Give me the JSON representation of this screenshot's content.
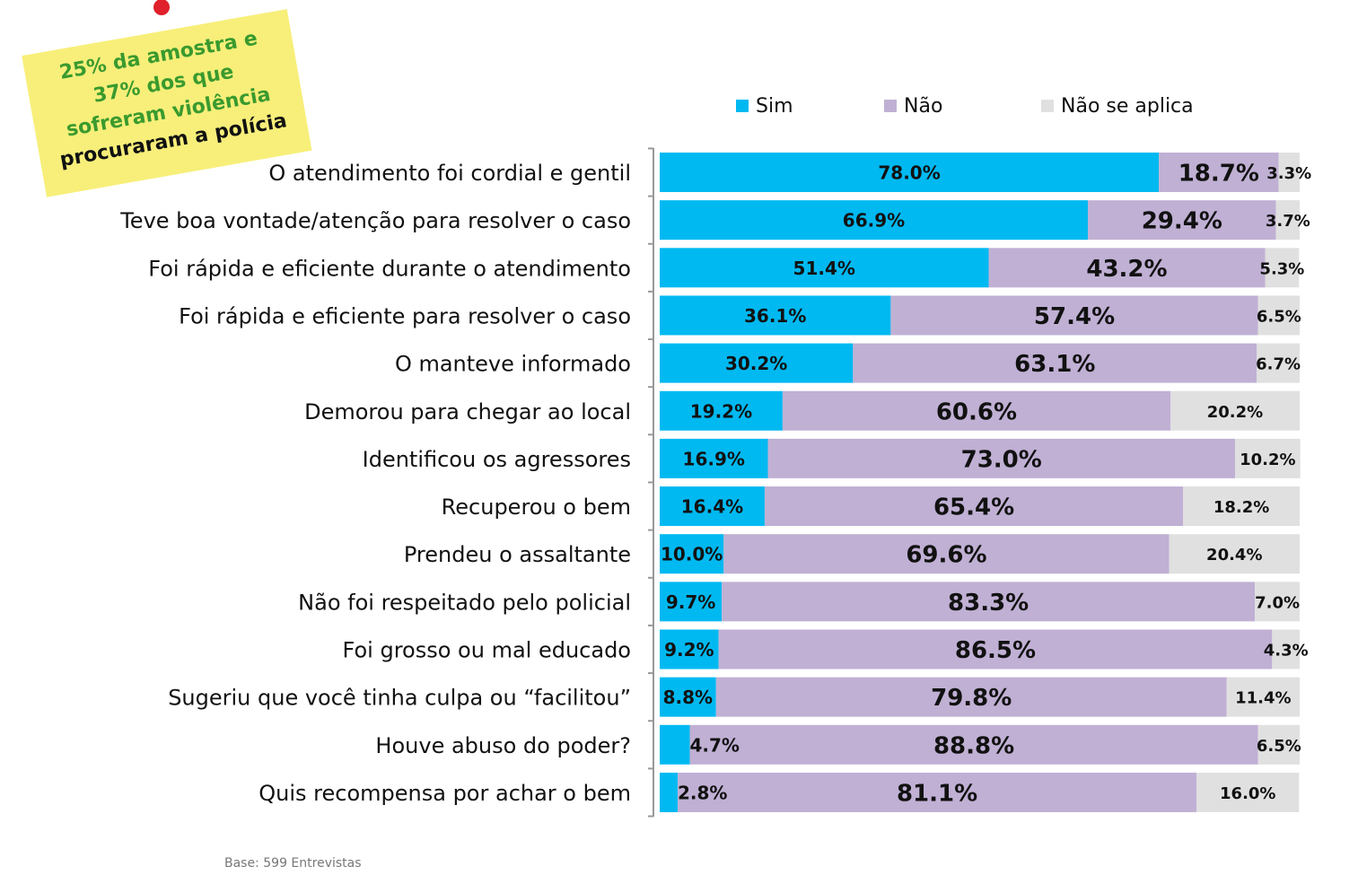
{
  "chart_data": {
    "type": "stacked-bar-horizontal",
    "annotation": [
      "25% da amostra e",
      "37% dos que",
      "sofreram violência",
      "procuraram a polícia"
    ],
    "footnote": "Base: 599 Entrevistas",
    "categories": [
      "O atendimento foi cordial e gentil",
      "Teve boa vontade/atenção para resolver o caso",
      "Foi rápida e eficiente durante o atendimento",
      "Foi rápida e eficiente para resolver o caso",
      "O manteve informado",
      "Demorou para chegar ao local",
      "Identificou os agressores",
      "Recuperou o bem",
      "Prendeu o assaltante",
      "Não foi respeitado pelo policial",
      "Foi grosso ou mal educado",
      "Sugeriu que você tinha culpa ou “facilitou”",
      "Houve abuso do poder?",
      "Quis recompensa por achar o bem"
    ],
    "xlim": [
      0,
      100
    ],
    "series": [
      {
        "name": "Sim",
        "color": "#00b9f1",
        "values": [
          78.0,
          66.9,
          51.4,
          36.1,
          30.2,
          19.2,
          16.9,
          16.4,
          10.0,
          9.7,
          9.2,
          8.8,
          4.7,
          2.8
        ],
        "value_labels": [
          "78.0%",
          "66.9%",
          "51.4%",
          "36.1%",
          "30.2%",
          "19.2%",
          "16.9%",
          "16.4%",
          "10.0%",
          "9.7%",
          "9.2%",
          "8.8%",
          "4.7%",
          "2.8%"
        ]
      },
      {
        "name": "Não",
        "color": "#c0b0d4",
        "values": [
          18.7,
          29.4,
          43.2,
          57.4,
          63.1,
          60.6,
          73.0,
          65.4,
          69.6,
          83.3,
          86.5,
          79.8,
          88.8,
          81.1
        ],
        "value_labels": [
          "18.7%",
          "29.4%",
          "43.2%",
          "57.4%",
          "63.1%",
          "60.6%",
          "73.0%",
          "65.4%",
          "69.6%",
          "83.3%",
          "86.5%",
          "79.8%",
          "88.8%",
          "81.1%"
        ]
      },
      {
        "name": "Não se aplica",
        "color": "#e0e0e0",
        "values": [
          3.3,
          3.7,
          5.3,
          6.5,
          6.7,
          20.2,
          10.2,
          18.2,
          20.4,
          7.0,
          4.3,
          11.4,
          6.5,
          16.0
        ],
        "value_labels": [
          "3.3%",
          "3.7%",
          "5.3%",
          "6.5%",
          "6.7%",
          "20.2%",
          "10.2%",
          "18.2%",
          "20.4%",
          "7.0%",
          "4.3%",
          "11.4%",
          "6.5%",
          "16.0%"
        ]
      }
    ]
  }
}
